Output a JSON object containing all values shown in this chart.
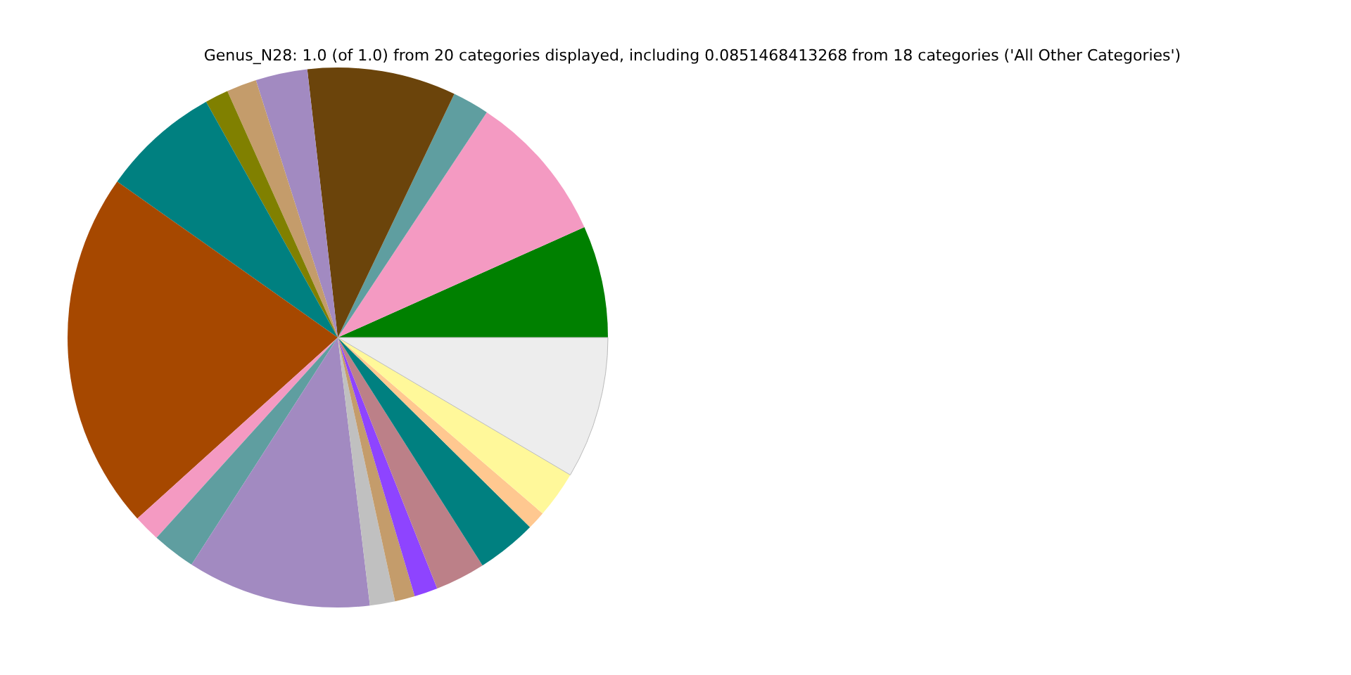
{
  "chart_data": {
    "type": "pie",
    "title": "Genus_N28: 1.0 (of 1.0) from 20 categories displayed, including 0.0851468413268 from 18 categories ('All Other Categories')",
    "categories": [
      null,
      null,
      null,
      null,
      null,
      null,
      null,
      null,
      null,
      null,
      null,
      null,
      null,
      null,
      null,
      null,
      null,
      null,
      null,
      null
    ],
    "values": [
      6.7,
      9.0,
      2.2,
      8.9,
      3.1,
      1.8,
      1.4,
      7.1,
      21.5,
      1.6,
      2.6,
      11.0,
      1.5,
      1.2,
      1.4,
      3.0,
      3.6,
      1.1,
      2.8,
      8.5
    ],
    "colors": [
      "#008000",
      "#f49ac2",
      "#5f9ea0",
      "#6b440b",
      "#a28ac1",
      "#c49c6b",
      "#808000",
      "#008080",
      "#a64800",
      "#f49ac2",
      "#5f9ea0",
      "#a28ac1",
      "#c0c0c0",
      "#c49c6b",
      "#8e44ff",
      "#bc8088",
      "#008080",
      "#ffc890",
      "#fff89a",
      "#ededed"
    ]
  }
}
